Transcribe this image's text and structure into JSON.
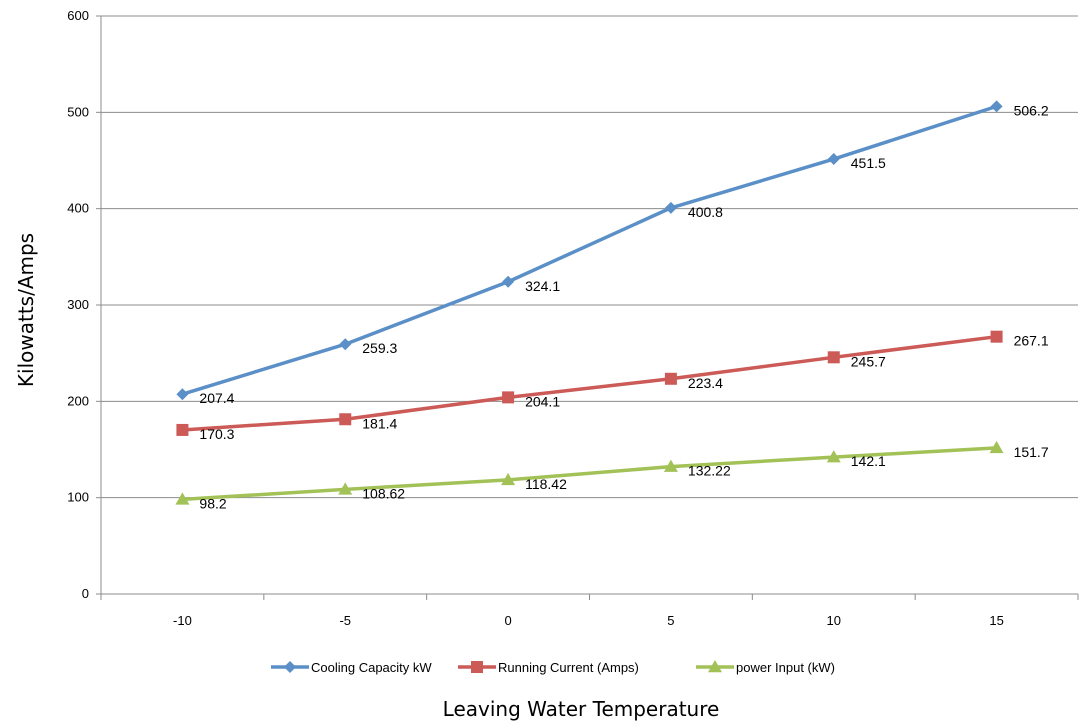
{
  "chart_data": {
    "type": "line",
    "title": "",
    "xlabel": "Leaving Water Temperature",
    "ylabel": "Kilowatts/Amps",
    "x": [
      -10,
      -5,
      0,
      5,
      10,
      15
    ],
    "x_tick_labels": [
      "-10",
      "-5",
      "0",
      "5",
      "10",
      "15"
    ],
    "ylim": [
      0,
      600
    ],
    "y_ticks": [
      0,
      100,
      200,
      300,
      400,
      500,
      600
    ],
    "y_tick_labels": [
      "0",
      "100",
      "200",
      "300",
      "400",
      "500",
      "600"
    ],
    "grid": "horizontal",
    "legend_position": "bottom",
    "series": [
      {
        "name": "Cooling Capacity kW",
        "color": "#5b8fc7",
        "marker": "diamond",
        "values": [
          207.4,
          259.3,
          324.1,
          400.8,
          451.5,
          506.2
        ],
        "labels": [
          "207.4",
          "259.3",
          "324.1",
          "400.8",
          "451.5",
          "506.2"
        ]
      },
      {
        "name": "Running Current (Amps)",
        "color": "#cc5a57",
        "marker": "square",
        "values": [
          170.3,
          181.4,
          204.1,
          223.4,
          245.7,
          267.1
        ],
        "labels": [
          "170.3",
          "181.4",
          "204.1",
          "223.4",
          "245.7",
          "267.1"
        ]
      },
      {
        "name": "power Input (kW)",
        "color": "#a2c257",
        "marker": "triangle",
        "values": [
          98.2,
          108.62,
          118.42,
          132.22,
          142.1,
          151.7
        ],
        "labels": [
          "98.2",
          "108.62",
          "118.42",
          "132.22",
          "142.1",
          "151.7"
        ]
      }
    ]
  }
}
